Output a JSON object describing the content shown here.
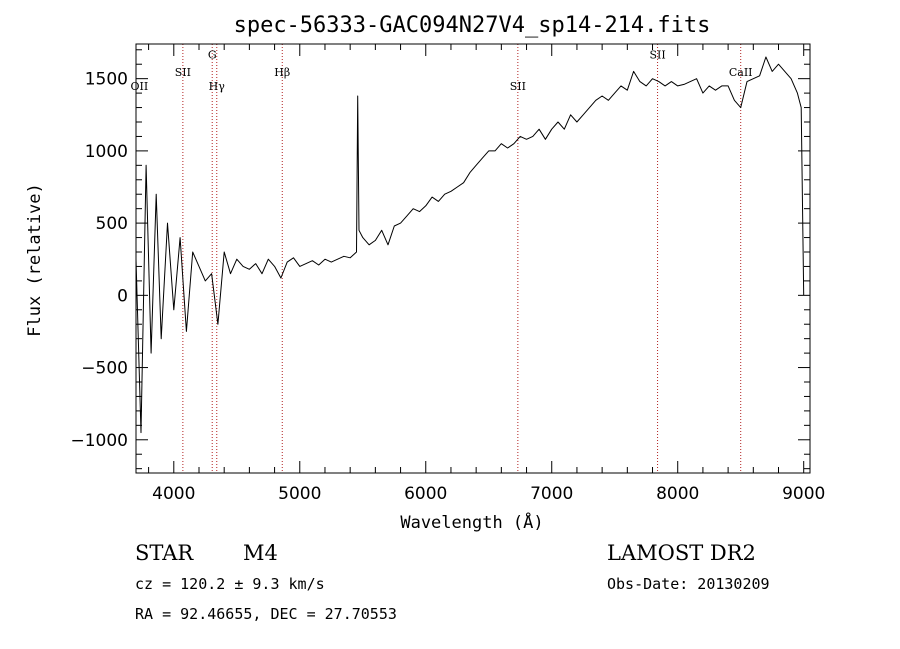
{
  "chart_data": {
    "type": "line",
    "title": "spec-56333-GAC094N27V4_sp14-214.fits",
    "xlabel": "Wavelength (Å)",
    "ylabel": "Flux (relative)",
    "xlim": [
      3700,
      9050
    ],
    "ylim": [
      -1230,
      1740
    ],
    "x_ticks": [
      4000,
      5000,
      6000,
      7000,
      8000,
      9000
    ],
    "y_ticks": [
      -1000,
      -500,
      0,
      500,
      1000,
      1500
    ],
    "series": [
      {
        "x": [
          3700,
          3740,
          3780,
          3820,
          3860,
          3900,
          3950,
          4000,
          4050,
          4100,
          4150,
          4200,
          4250,
          4300,
          4350,
          4400,
          4450,
          4500,
          4550,
          4600,
          4650,
          4700,
          4750,
          4800,
          4850,
          4900,
          4950,
          5000,
          5050,
          5100,
          5150,
          5200,
          5250,
          5300,
          5350,
          5400,
          5450,
          5460,
          5470,
          5500,
          5550,
          5600,
          5650,
          5700,
          5750,
          5800,
          5850,
          5900,
          5950,
          6000,
          6050,
          6100,
          6150,
          6200,
          6250,
          6300,
          6350,
          6400,
          6450,
          6500,
          6550,
          6600,
          6650,
          6700,
          6750,
          6800,
          6850,
          6900,
          6950,
          7000,
          7050,
          7100,
          7150,
          7200,
          7250,
          7300,
          7350,
          7400,
          7450,
          7500,
          7550,
          7600,
          7650,
          7700,
          7750,
          7800,
          7850,
          7900,
          7950,
          8000,
          8050,
          8100,
          8150,
          8200,
          8250,
          8300,
          8350,
          8400,
          8450,
          8500,
          8550,
          8600,
          8650,
          8700,
          8750,
          8800,
          8850,
          8900,
          8950,
          8980,
          9000
        ],
        "y": [
          250,
          -950,
          900,
          -400,
          700,
          -300,
          500,
          -100,
          400,
          -250,
          300,
          200,
          100,
          150,
          -200,
          300,
          150,
          250,
          200,
          180,
          220,
          150,
          250,
          200,
          120,
          230,
          260,
          200,
          220,
          240,
          210,
          250,
          230,
          250,
          270,
          260,
          300,
          1380,
          450,
          400,
          350,
          380,
          450,
          350,
          480,
          500,
          550,
          600,
          580,
          620,
          680,
          650,
          700,
          720,
          750,
          780,
          850,
          900,
          950,
          1000,
          1000,
          1050,
          1020,
          1050,
          1100,
          1080,
          1100,
          1150,
          1080,
          1150,
          1200,
          1150,
          1250,
          1200,
          1250,
          1300,
          1350,
          1380,
          1350,
          1400,
          1450,
          1420,
          1550,
          1480,
          1450,
          1500,
          1480,
          1450,
          1480,
          1450,
          1460,
          1480,
          1500,
          1400,
          1450,
          1420,
          1450,
          1450,
          1350,
          1300,
          1480,
          1500,
          1520,
          1650,
          1550,
          1600,
          1550,
          1500,
          1400,
          1300,
          0
        ]
      }
    ],
    "reference_lines": [
      {
        "label": "OII",
        "x": 3727,
        "label_y": 1420
      },
      {
        "label": "SII",
        "x": 4072,
        "label_y": 1520,
        "dotted": true
      },
      {
        "label": "G",
        "x": 4305,
        "label_y": 1640,
        "dotted": true
      },
      {
        "label": "Hγ",
        "x": 4341,
        "label_y": 1420,
        "dotted": true
      },
      {
        "label": "Hβ",
        "x": 4861,
        "label_y": 1520,
        "dotted": true
      },
      {
        "label": "SII",
        "x": 6731,
        "label_y": 1420,
        "dotted": true
      },
      {
        "label": "SII",
        "x": 7840,
        "label_y": 1640,
        "dotted": true
      },
      {
        "label": "CaII",
        "x": 8500,
        "label_y": 1520,
        "dotted": true
      }
    ]
  },
  "info": {
    "star_label": "STAR",
    "spectral_type": "M4",
    "cz": "cz = 120.2 ± 9.3 km/s",
    "coords": "RA =  92.46655, DEC =  27.70553",
    "survey": "LAMOST DR2",
    "obs_date": "Obs-Date: 20130209"
  },
  "colors": {
    "line": "#000000",
    "reference": "#b22222",
    "background": "#ffffff"
  }
}
